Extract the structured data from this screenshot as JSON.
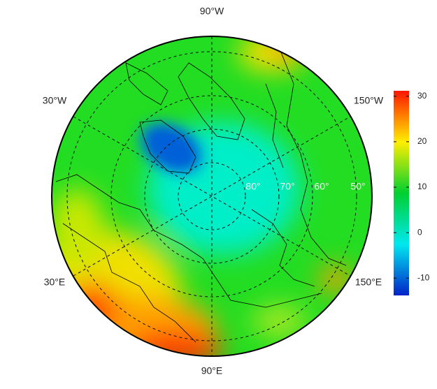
{
  "map": {
    "longitude_labels": [
      "90°W",
      "30°W",
      "150°W",
      "30°E",
      "150°E",
      "90°E"
    ],
    "latitude_labels": [
      "80°",
      "70°",
      "60°",
      "50°"
    ]
  },
  "colorbar": {
    "lim": [
      -13.8,
      31.2
    ],
    "ticks": [
      -10,
      0,
      10,
      20,
      30
    ],
    "colors": [
      "#0022c8",
      "#00e8f0",
      "#00d030",
      "#ffee00",
      "#ff1500"
    ]
  }
}
